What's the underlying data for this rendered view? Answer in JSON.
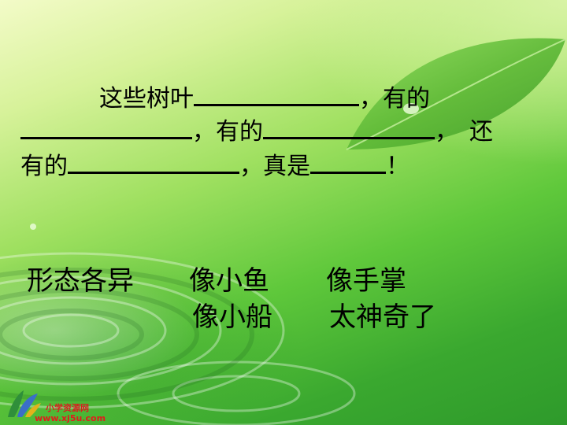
{
  "sentence": {
    "line1_start": "这些树叶",
    "line1_sep": "，",
    "line1_end": "有的",
    "line2_sep1": "，",
    "line2_mid": "有的",
    "line2_sep2": "，",
    "line2_end": "还",
    "line3_start": "有的",
    "line3_sep": "，",
    "line3_mid": "真是",
    "line3_end": "！"
  },
  "hints": {
    "row1": [
      "形态各异",
      "像小鱼",
      "像手掌"
    ],
    "row2": [
      "像小船",
      "太神奇了"
    ]
  },
  "logo": {
    "name": "小学资源网",
    "url": "www.xj5u.com"
  },
  "colors": {
    "background_light": "#f3fbc8",
    "background_dark": "#2e9a2b",
    "leaf": "#5cb835",
    "text": "#000000",
    "logo_name": "#d81e1e",
    "logo_url": "#e01c1c"
  }
}
